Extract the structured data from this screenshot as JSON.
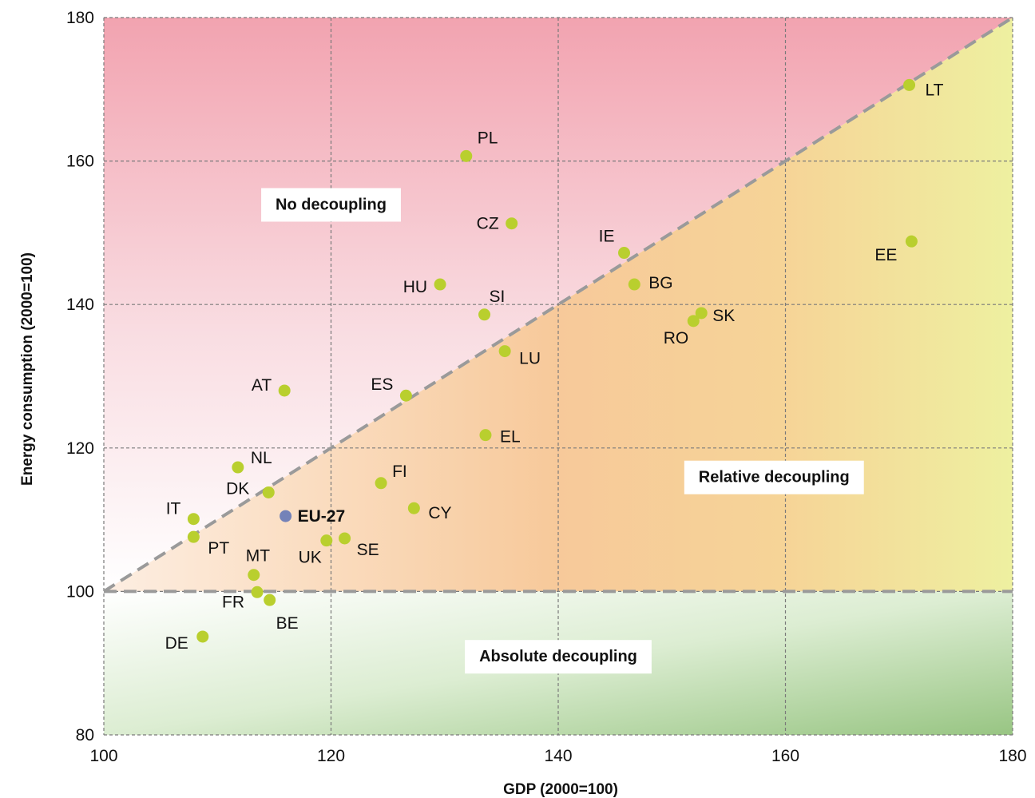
{
  "chart_data": {
    "type": "scatter",
    "title": "",
    "xlabel": "GDP (2000=100)",
    "ylabel": "Energy consumption (2000=100)",
    "xlim": [
      100,
      180
    ],
    "ylim": [
      80,
      180
    ],
    "xticks": [
      100,
      120,
      140,
      160,
      180
    ],
    "yticks": [
      80,
      100,
      120,
      140,
      160,
      180
    ],
    "grid": true,
    "reference_lines": [
      {
        "type": "diagonal",
        "from": [
          100,
          100
        ],
        "to": [
          180,
          180
        ],
        "style": "dashed"
      },
      {
        "type": "horizontal",
        "y": 100,
        "style": "dashed"
      }
    ],
    "regions": [
      {
        "label": "No decoupling",
        "color": "#f2a8b4",
        "anchor": [
          120,
          154
        ]
      },
      {
        "label": "Relative decoupling",
        "color": "#f5c896",
        "anchor": [
          159,
          116
        ]
      },
      {
        "label": "Absolute decoupling",
        "color": "#a8cf93",
        "anchor": [
          140,
          91
        ]
      }
    ],
    "colors": {
      "country": "#b9cf2e",
      "eu": "#7482b8"
    },
    "points": [
      {
        "label": "PL",
        "x": 131.9,
        "y": 160.7
      },
      {
        "label": "CZ",
        "x": 135.9,
        "y": 151.3
      },
      {
        "label": "IE",
        "x": 145.8,
        "y": 147.2
      },
      {
        "label": "HU",
        "x": 129.6,
        "y": 142.8
      },
      {
        "label": "BG",
        "x": 146.7,
        "y": 142.8
      },
      {
        "label": "SI",
        "x": 133.5,
        "y": 138.6
      },
      {
        "label": "SK",
        "x": 152.6,
        "y": 138.8
      },
      {
        "label": "RO",
        "x": 151.9,
        "y": 137.7
      },
      {
        "label": "LU",
        "x": 135.3,
        "y": 133.5
      },
      {
        "label": "AT",
        "x": 115.9,
        "y": 128.0
      },
      {
        "label": "ES",
        "x": 126.6,
        "y": 127.3
      },
      {
        "label": "EL",
        "x": 133.6,
        "y": 121.8
      },
      {
        "label": "NL",
        "x": 111.8,
        "y": 117.3
      },
      {
        "label": "FI",
        "x": 124.4,
        "y": 115.1
      },
      {
        "label": "DK",
        "x": 114.5,
        "y": 113.8
      },
      {
        "label": "CY",
        "x": 127.3,
        "y": 111.6
      },
      {
        "label": "EU-27",
        "x": 116.0,
        "y": 110.5,
        "highlight": true
      },
      {
        "label": "IT",
        "x": 107.9,
        "y": 110.1
      },
      {
        "label": "PT",
        "x": 107.9,
        "y": 107.6
      },
      {
        "label": "SE",
        "x": 121.2,
        "y": 107.4
      },
      {
        "label": "UK",
        "x": 119.6,
        "y": 107.1
      },
      {
        "label": "MT",
        "x": 113.2,
        "y": 102.3
      },
      {
        "label": "FR",
        "x": 113.5,
        "y": 99.9
      },
      {
        "label": "BE",
        "x": 114.6,
        "y": 98.8
      },
      {
        "label": "DE",
        "x": 108.7,
        "y": 93.7
      },
      {
        "label": "LT",
        "x": 170.9,
        "y": 170.6
      },
      {
        "label": "EE",
        "x": 171.1,
        "y": 148.8
      }
    ]
  }
}
